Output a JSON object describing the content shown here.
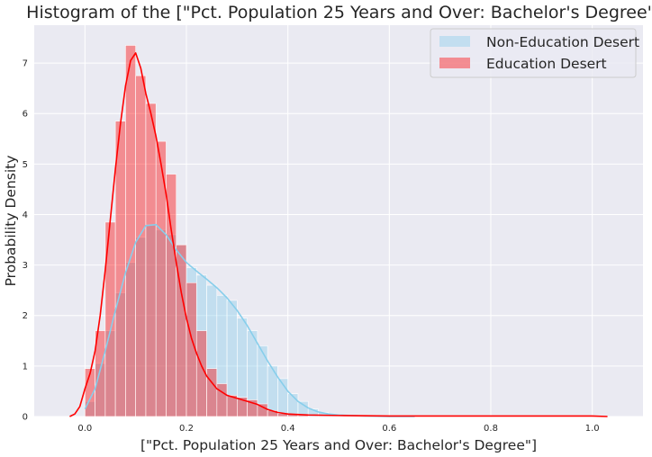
{
  "chart_data": {
    "type": "histogram",
    "title": "Histogram of the [\"Pct. Population 25 Years and Over: Bachelor's Degree\"]",
    "xlabel": "[\"Pct. Population 25 Years and Over: Bachelor's Degree\"]",
    "ylabel": "Probability Density",
    "xlim": [
      -0.1,
      1.1
    ],
    "ylim": [
      0,
      7.75
    ],
    "xticks": [
      0.0,
      0.2,
      0.4,
      0.6,
      0.8,
      1.0
    ],
    "xtick_labels": [
      "0.0",
      "0.2",
      "0.4",
      "0.6",
      "0.8",
      "1.0"
    ],
    "yticks": [
      0,
      1,
      2,
      3,
      4,
      5,
      6,
      7
    ],
    "ytick_labels": [
      "0",
      "1",
      "2",
      "3",
      "4",
      "5",
      "6",
      "7"
    ],
    "grid": true,
    "legend_position": "upper right",
    "bin_width": 0.02,
    "series": [
      {
        "name": "Non-Education Desert",
        "color": "#87ceeb",
        "bar_opacity": 0.4,
        "bins": [
          {
            "x": 0.0,
            "density": 0.3
          },
          {
            "x": 0.02,
            "density": 1.05
          },
          {
            "x": 0.04,
            "density": 1.7
          },
          {
            "x": 0.06,
            "density": 2.45
          },
          {
            "x": 0.08,
            "density": 3.05
          },
          {
            "x": 0.1,
            "density": 3.55
          },
          {
            "x": 0.12,
            "density": 3.8
          },
          {
            "x": 0.14,
            "density": 3.7
          },
          {
            "x": 0.16,
            "density": 3.6
          },
          {
            "x": 0.18,
            "density": 3.4
          },
          {
            "x": 0.2,
            "density": 2.95
          },
          {
            "x": 0.22,
            "density": 2.8
          },
          {
            "x": 0.24,
            "density": 2.6
          },
          {
            "x": 0.26,
            "density": 2.4
          },
          {
            "x": 0.28,
            "density": 2.3
          },
          {
            "x": 0.3,
            "density": 1.95
          },
          {
            "x": 0.32,
            "density": 1.7
          },
          {
            "x": 0.34,
            "density": 1.4
          },
          {
            "x": 0.36,
            "density": 1.0
          },
          {
            "x": 0.38,
            "density": 0.75
          },
          {
            "x": 0.4,
            "density": 0.45
          },
          {
            "x": 0.42,
            "density": 0.3
          },
          {
            "x": 0.44,
            "density": 0.15
          },
          {
            "x": 0.46,
            "density": 0.08
          },
          {
            "x": 0.48,
            "density": 0.04
          },
          {
            "x": 0.5,
            "density": 0.02
          }
        ],
        "kde": [
          [
            0.0,
            0.15
          ],
          [
            0.02,
            0.55
          ],
          [
            0.04,
            1.3
          ],
          [
            0.06,
            2.1
          ],
          [
            0.08,
            2.85
          ],
          [
            0.1,
            3.45
          ],
          [
            0.12,
            3.78
          ],
          [
            0.14,
            3.8
          ],
          [
            0.16,
            3.6
          ],
          [
            0.18,
            3.3
          ],
          [
            0.2,
            3.05
          ],
          [
            0.22,
            2.88
          ],
          [
            0.24,
            2.72
          ],
          [
            0.26,
            2.55
          ],
          [
            0.28,
            2.35
          ],
          [
            0.3,
            2.1
          ],
          [
            0.32,
            1.8
          ],
          [
            0.34,
            1.45
          ],
          [
            0.36,
            1.1
          ],
          [
            0.38,
            0.78
          ],
          [
            0.4,
            0.5
          ],
          [
            0.42,
            0.3
          ],
          [
            0.44,
            0.17
          ],
          [
            0.46,
            0.09
          ],
          [
            0.48,
            0.05
          ],
          [
            0.5,
            0.03
          ],
          [
            0.55,
            0.01
          ],
          [
            0.6,
            0.0
          ],
          [
            0.65,
            0.0
          ]
        ]
      },
      {
        "name": "Education Desert",
        "color": "#ff0000",
        "bar_opacity": 0.4,
        "bins": [
          {
            "x": 0.0,
            "density": 0.95
          },
          {
            "x": 0.02,
            "density": 1.7
          },
          {
            "x": 0.04,
            "density": 3.85
          },
          {
            "x": 0.06,
            "density": 5.85
          },
          {
            "x": 0.08,
            "density": 7.35
          },
          {
            "x": 0.1,
            "density": 6.75
          },
          {
            "x": 0.12,
            "density": 6.2
          },
          {
            "x": 0.14,
            "density": 5.45
          },
          {
            "x": 0.16,
            "density": 4.8
          },
          {
            "x": 0.18,
            "density": 3.4
          },
          {
            "x": 0.2,
            "density": 2.65
          },
          {
            "x": 0.22,
            "density": 1.7
          },
          {
            "x": 0.24,
            "density": 0.95
          },
          {
            "x": 0.26,
            "density": 0.65
          },
          {
            "x": 0.28,
            "density": 0.42
          },
          {
            "x": 0.3,
            "density": 0.38
          },
          {
            "x": 0.32,
            "density": 0.33
          },
          {
            "x": 0.34,
            "density": 0.25
          },
          {
            "x": 0.36,
            "density": 0.12
          },
          {
            "x": 0.38,
            "density": 0.06
          },
          {
            "x": 0.4,
            "density": 0.05
          },
          {
            "x": 0.42,
            "density": 0.03
          }
        ],
        "kde": [
          [
            -0.03,
            0.0
          ],
          [
            -0.02,
            0.05
          ],
          [
            -0.01,
            0.2
          ],
          [
            0.0,
            0.55
          ],
          [
            0.01,
            0.85
          ],
          [
            0.02,
            1.3
          ],
          [
            0.03,
            2.0
          ],
          [
            0.04,
            2.9
          ],
          [
            0.05,
            3.9
          ],
          [
            0.06,
            4.9
          ],
          [
            0.07,
            5.8
          ],
          [
            0.08,
            6.55
          ],
          [
            0.09,
            7.05
          ],
          [
            0.1,
            7.2
          ],
          [
            0.11,
            6.9
          ],
          [
            0.12,
            6.4
          ],
          [
            0.13,
            6.0
          ],
          [
            0.14,
            5.55
          ],
          [
            0.15,
            5.0
          ],
          [
            0.16,
            4.4
          ],
          [
            0.17,
            3.7
          ],
          [
            0.18,
            3.05
          ],
          [
            0.19,
            2.45
          ],
          [
            0.2,
            1.95
          ],
          [
            0.21,
            1.55
          ],
          [
            0.22,
            1.25
          ],
          [
            0.23,
            1.0
          ],
          [
            0.24,
            0.8
          ],
          [
            0.26,
            0.55
          ],
          [
            0.28,
            0.42
          ],
          [
            0.3,
            0.36
          ],
          [
            0.32,
            0.3
          ],
          [
            0.34,
            0.24
          ],
          [
            0.36,
            0.14
          ],
          [
            0.38,
            0.08
          ],
          [
            0.4,
            0.05
          ],
          [
            0.44,
            0.03
          ],
          [
            0.5,
            0.02
          ],
          [
            0.6,
            0.01
          ],
          [
            0.8,
            0.01
          ],
          [
            1.0,
            0.01
          ],
          [
            1.03,
            0.0
          ]
        ]
      }
    ]
  }
}
